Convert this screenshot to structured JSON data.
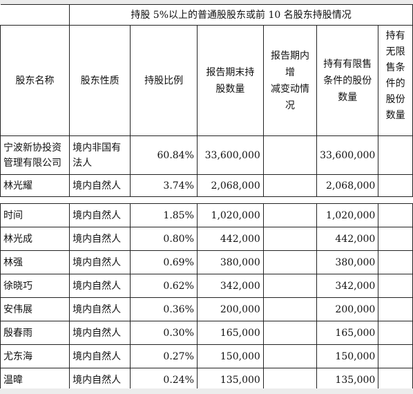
{
  "banner": "持股 5%以上的普通股股东或前 10 名股东持股情况",
  "headers": {
    "name": "股东名称",
    "nature": "股东性质",
    "ratio": "持股比例",
    "shares": [
      "报告期末持",
      "股数量"
    ],
    "change": [
      "报告期内增",
      "减变动情况"
    ],
    "restricted": [
      "持有有限售",
      "条件的股份",
      "数量"
    ],
    "unrestricted": [
      "持有",
      "无限",
      "售条",
      "件的",
      "股份",
      "数量"
    ]
  },
  "rows_top": [
    {
      "name": [
        "宁波新协投资",
        "管理有限公司"
      ],
      "nature": [
        "境内非国有",
        "法人"
      ],
      "ratio": "60.84%",
      "shares": "33,600,000",
      "restricted": "33,600,000"
    },
    {
      "name": [
        "林光耀"
      ],
      "nature": [
        "境内自然人"
      ],
      "ratio": "3.74%",
      "shares": "2,068,000",
      "restricted": "2,068,000"
    }
  ],
  "rows_bottom": [
    {
      "name": "时间",
      "nature": "境内自然人",
      "ratio": "1.85%",
      "shares": "1,020,000",
      "restricted": "1,020,000"
    },
    {
      "name": "林光成",
      "nature": "境内自然人",
      "ratio": "0.80%",
      "shares": "442,000",
      "restricted": "442,000"
    },
    {
      "name": "林强",
      "nature": "境内自然人",
      "ratio": "0.69%",
      "shares": "380,000",
      "restricted": "380,000"
    },
    {
      "name": "徐晓巧",
      "nature": "境内自然人",
      "ratio": "0.62%",
      "shares": "342,000",
      "restricted": "342,000"
    },
    {
      "name": "安伟展",
      "nature": "境内自然人",
      "ratio": "0.36%",
      "shares": "200,000",
      "restricted": "200,000"
    },
    {
      "name": "殷春雨",
      "nature": "境内自然人",
      "ratio": "0.30%",
      "shares": "165,000",
      "restricted": "165,000"
    },
    {
      "name": "尤东海",
      "nature": "境内自然人",
      "ratio": "0.27%",
      "shares": "150,000",
      "restricted": "150,000"
    },
    {
      "name": "温暐",
      "nature": "境内自然人",
      "ratio": "0.24%",
      "shares": "135,000",
      "restricted": "135,000"
    }
  ]
}
